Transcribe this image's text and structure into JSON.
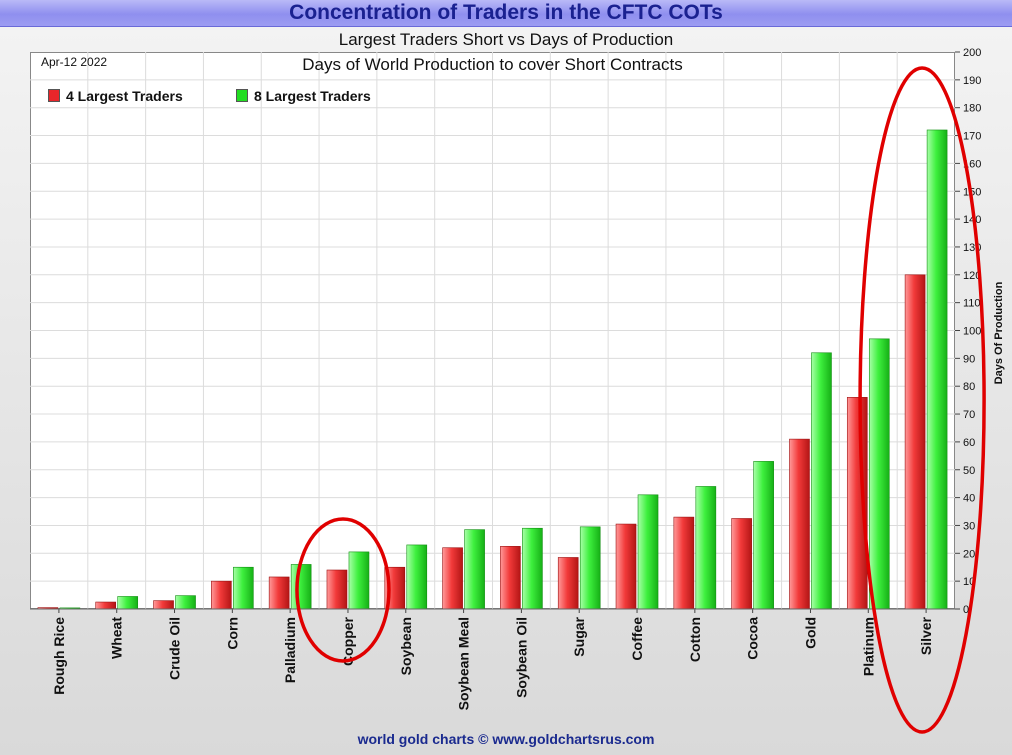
{
  "header": {
    "title": "Concentration of Traders in the CFTC COTs"
  },
  "footer": {
    "text": "world gold charts © www.goldchartsrus.com"
  },
  "chart_data": {
    "type": "bar",
    "title": "Largest Traders Short vs Days of Production",
    "subtitle": "Days of World Production to cover Short Contracts",
    "date": "Apr-12  2022",
    "ylabel": "Days Of Production",
    "ylim": [
      0,
      200
    ],
    "yticks": [
      "0",
      "10",
      "20",
      "30",
      "40",
      "50",
      "60",
      "70",
      "80",
      "90",
      "100",
      "110",
      "120",
      "130",
      "140",
      "150",
      "160",
      "170",
      "180",
      "190",
      "200"
    ],
    "grid": true,
    "legend_position": "top-left",
    "categories": [
      "Rough Rice",
      "Wheat",
      "Crude Oil",
      "Corn",
      "Palladium",
      "Copper",
      "Soybean",
      "Soybean Meal",
      "Soybean Oil",
      "Sugar",
      "Coffee",
      "Cotton",
      "Cocoa",
      "Gold",
      "Platinum",
      "Silver"
    ],
    "series": [
      {
        "name": "4 Largest Traders",
        "color": "#e8262a",
        "values": [
          0.5,
          2.5,
          3,
          10,
          11.5,
          14,
          15,
          22,
          22.5,
          18.5,
          30.5,
          33,
          32.5,
          61,
          76,
          120
        ]
      },
      {
        "name": "8 Largest Traders",
        "color": "#22dd22",
        "values": [
          0.4,
          4.5,
          4.8,
          15,
          16,
          20.5,
          23,
          28.5,
          29,
          29.5,
          41,
          44,
          53,
          92,
          97,
          172
        ]
      }
    ],
    "annotations": [
      {
        "shape": "ellipse",
        "color": "#e00000",
        "marks": "Copper"
      },
      {
        "shape": "ellipse",
        "color": "#e00000",
        "marks": "Silver"
      }
    ]
  }
}
